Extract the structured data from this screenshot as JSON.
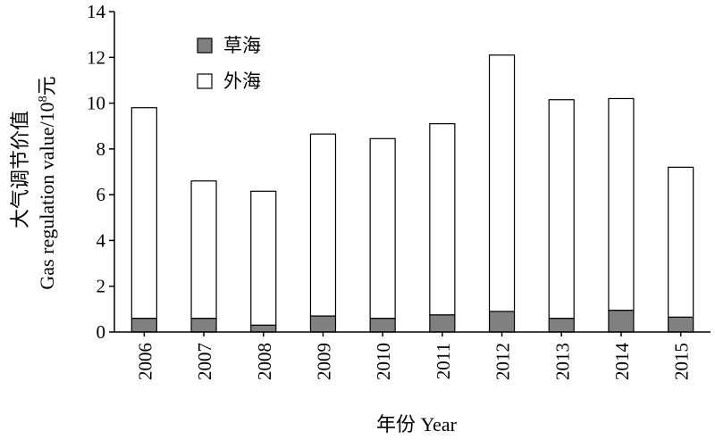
{
  "chart_data": {
    "type": "bar",
    "stacked": true,
    "categories": [
      "2006",
      "2007",
      "2008",
      "2009",
      "2010",
      "2011",
      "2012",
      "2013",
      "2014",
      "2015"
    ],
    "series": [
      {
        "name": "草海",
        "color": "#808080",
        "values": [
          0.6,
          0.6,
          0.3,
          0.7,
          0.6,
          0.75,
          0.9,
          0.6,
          0.95,
          0.65
        ]
      },
      {
        "name": "外海",
        "color": "#ffffff",
        "values": [
          9.2,
          6.0,
          5.85,
          7.95,
          7.85,
          8.35,
          11.2,
          9.55,
          9.25,
          6.55
        ]
      }
    ],
    "ylim": [
      0,
      14
    ],
    "yticks": [
      "0",
      "2",
      "4",
      "6",
      "8",
      "10",
      "12",
      "14"
    ],
    "ylabel_line1": "大气调节价值",
    "ylabel_line2_main": "Gas regulation value/10",
    "ylabel_line2_sup": "8",
    "ylabel_line2_unit": "元",
    "xlabel": "年份 Year",
    "legend_position": "top-left",
    "grid": false
  }
}
